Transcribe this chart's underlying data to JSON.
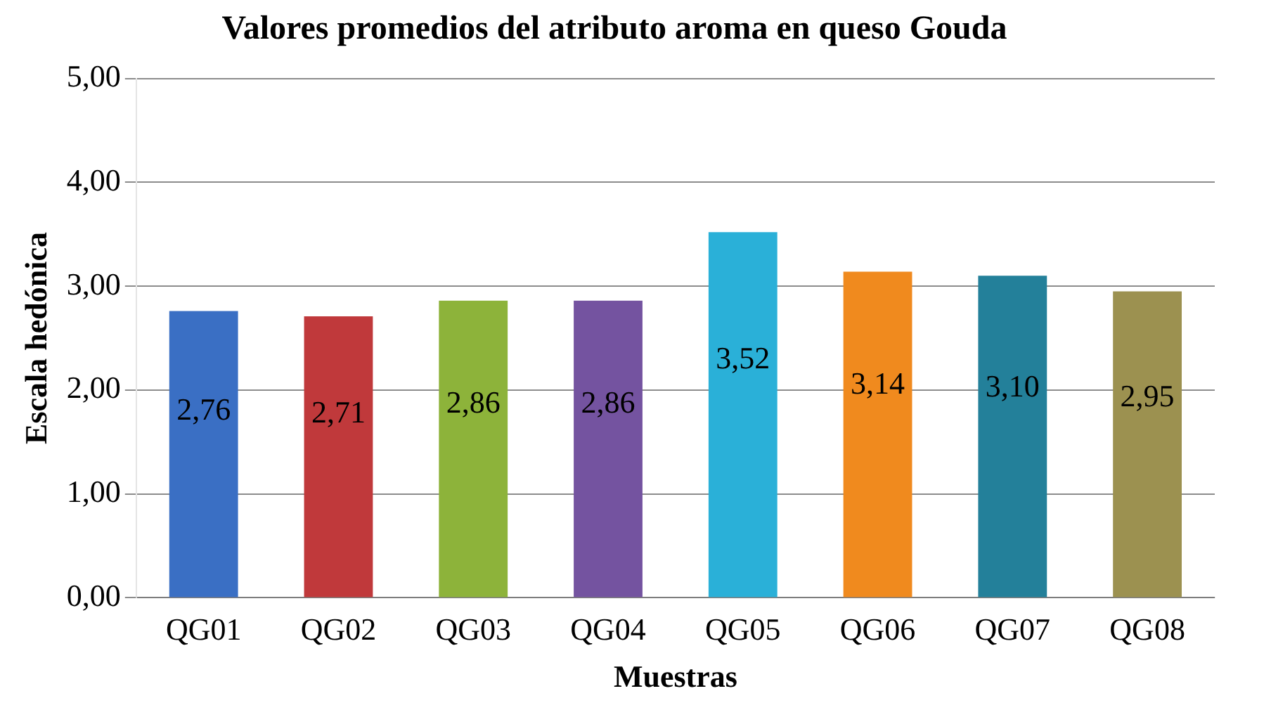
{
  "chart_data": {
    "type": "bar",
    "title": "Valores promedios del atributo aroma en queso Gouda",
    "xlabel": "Muestras",
    "ylabel": "Escala hedónica",
    "categories": [
      "QG01",
      "QG02",
      "QG03",
      "QG04",
      "QG05",
      "QG06",
      "QG07",
      "QG08"
    ],
    "values": [
      2.76,
      2.71,
      2.86,
      2.86,
      3.52,
      3.14,
      3.1,
      2.95
    ],
    "value_labels": [
      "2,76",
      "2,71",
      "2,86",
      "2,86",
      "3,52",
      "3,14",
      "3,10",
      "2,95"
    ],
    "colors": [
      "#3a6fc4",
      "#c0393b",
      "#8db33a",
      "#7453a0",
      "#2ab0d8",
      "#f08a1e",
      "#23809a",
      "#9c9150"
    ],
    "ylim": [
      0,
      5
    ],
    "yticks": [
      {
        "value": 0,
        "label": "0,00"
      },
      {
        "value": 1,
        "label": "1,00"
      },
      {
        "value": 2,
        "label": "2,00"
      },
      {
        "value": 3,
        "label": "3,00"
      },
      {
        "value": 4,
        "label": "4,00"
      },
      {
        "value": 5,
        "label": "5,00"
      }
    ],
    "grid": "y",
    "legend": false
  }
}
